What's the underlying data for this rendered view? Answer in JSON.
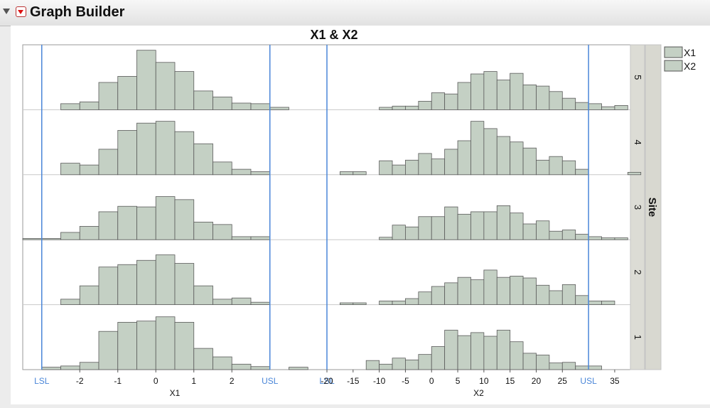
{
  "window": {
    "title": "Graph Builder"
  },
  "chart_data": {
    "type": "bar",
    "title": "X1 & X2",
    "group_label": "Site",
    "groups": [
      "5",
      "4",
      "3",
      "2",
      "1"
    ],
    "legend": [
      "X1",
      "X2"
    ],
    "colors": {
      "bar_fill": "#c4d0c4",
      "bar_stroke": "#5a5a5a",
      "spec_line": "#4a86d8",
      "group_strip": "#dcdcd5"
    },
    "panels": [
      {
        "variable": "X1",
        "xlabel": "X1",
        "xlim": [
          -3.5,
          4.5
        ],
        "tick_labels": [
          "-2",
          "-1",
          "0",
          "1",
          "2"
        ],
        "tick_values": [
          -2,
          -1,
          0,
          1,
          2
        ],
        "spec_limits": [
          {
            "label": "LSL",
            "value": -3.0
          },
          {
            "label": "USL",
            "value": 3.0
          }
        ],
        "bin_width": 0.5,
        "bin_start": -3.5,
        "series": [
          {
            "name": "5",
            "values": [
              0,
              0,
              1,
              1.3,
              4.5,
              5.5,
              9.8,
              7.8,
              6.3,
              3.1,
              2.1,
              1.1,
              1.0,
              0.4,
              0
            ]
          },
          {
            "name": "4",
            "values": [
              0,
              0,
              1.9,
              1.6,
              4.2,
              7.3,
              8.5,
              8.8,
              7.1,
              5.1,
              2.1,
              0.9,
              0.5,
              0,
              0
            ]
          },
          {
            "name": "3",
            "values": [
              0.2,
              0.2,
              1.2,
              2.2,
              4.6,
              5.5,
              5.4,
              7.1,
              6.6,
              2.9,
              2.5,
              0.5,
              0.5,
              0,
              0
            ]
          },
          {
            "name": "2",
            "values": [
              0,
              0,
              0.9,
              3.1,
              6.2,
              6.6,
              7.3,
              8.2,
              6.8,
              3.1,
              0.9,
              1.1,
              0.4,
              0,
              0
            ]
          },
          {
            "name": "1",
            "values": [
              0,
              0.4,
              0.6,
              1.2,
              6.3,
              7.8,
              8.0,
              8.7,
              7.8,
              3.5,
              2.1,
              0.9,
              0.5,
              0,
              0.4
            ]
          }
        ]
      },
      {
        "variable": "X2",
        "xlabel": "X2",
        "xlim": [
          -20,
          38
        ],
        "tick_labels": [
          "-20",
          "-15",
          "-10",
          "-5",
          "0",
          "5",
          "10",
          "15",
          "20",
          "25",
          "35"
        ],
        "tick_values": [
          -20,
          -15,
          -10,
          -5,
          0,
          5,
          10,
          15,
          20,
          25,
          35
        ],
        "spec_limits": [
          {
            "label": "LSL",
            "value": -20
          },
          {
            "label": "USL",
            "value": 30
          }
        ],
        "bin_width": 2.5,
        "bin_start": -17.5,
        "series": [
          {
            "name": "5",
            "values": [
              0,
              0,
              0,
              0.4,
              0.6,
              0.6,
              1.4,
              2.8,
              2.6,
              4.5,
              5.9,
              6.3,
              4.9,
              6.0,
              4.1,
              3.9,
              3.0,
              1.9,
              1.2,
              1.0,
              0.5,
              0.7,
              0
            ]
          },
          {
            "name": "4",
            "values": [
              0.5,
              0.5,
              0,
              2.3,
              1.6,
              2.4,
              3.5,
              2.6,
              4.2,
              5.6,
              8.8,
              7.6,
              6.3,
              5.4,
              4.4,
              2.4,
              3.0,
              2.3,
              0.9,
              0,
              0,
              0,
              0.4
            ]
          },
          {
            "name": "3",
            "values": [
              0,
              0,
              0,
              0.4,
              2.4,
              2.1,
              3.8,
              3.8,
              5.4,
              4.2,
              4.6,
              4.6,
              5.6,
              4.4,
              2.6,
              3.1,
              1.4,
              1.6,
              0.9,
              0.5,
              0.3,
              0.3,
              0
            ]
          },
          {
            "name": "2",
            "values": [
              0.3,
              0.3,
              0,
              0.6,
              0.6,
              1.0,
              2.1,
              3.0,
              3.6,
              4.5,
              4.1,
              5.7,
              4.5,
              4.7,
              4.4,
              3.2,
              2.3,
              3.3,
              1.5,
              0.6,
              0.6,
              0,
              0
            ]
          },
          {
            "name": "1",
            "values": [
              0,
              0,
              1.5,
              0.9,
              1.9,
              1.6,
              2.5,
              3.8,
              6.5,
              5.6,
              6.1,
              5.5,
              6.5,
              4.6,
              2.7,
              2.4,
              1.1,
              1.2,
              0.6,
              0.6,
              0,
              0,
              0
            ]
          }
        ]
      }
    ],
    "grid": false,
    "legend_position": "right"
  }
}
